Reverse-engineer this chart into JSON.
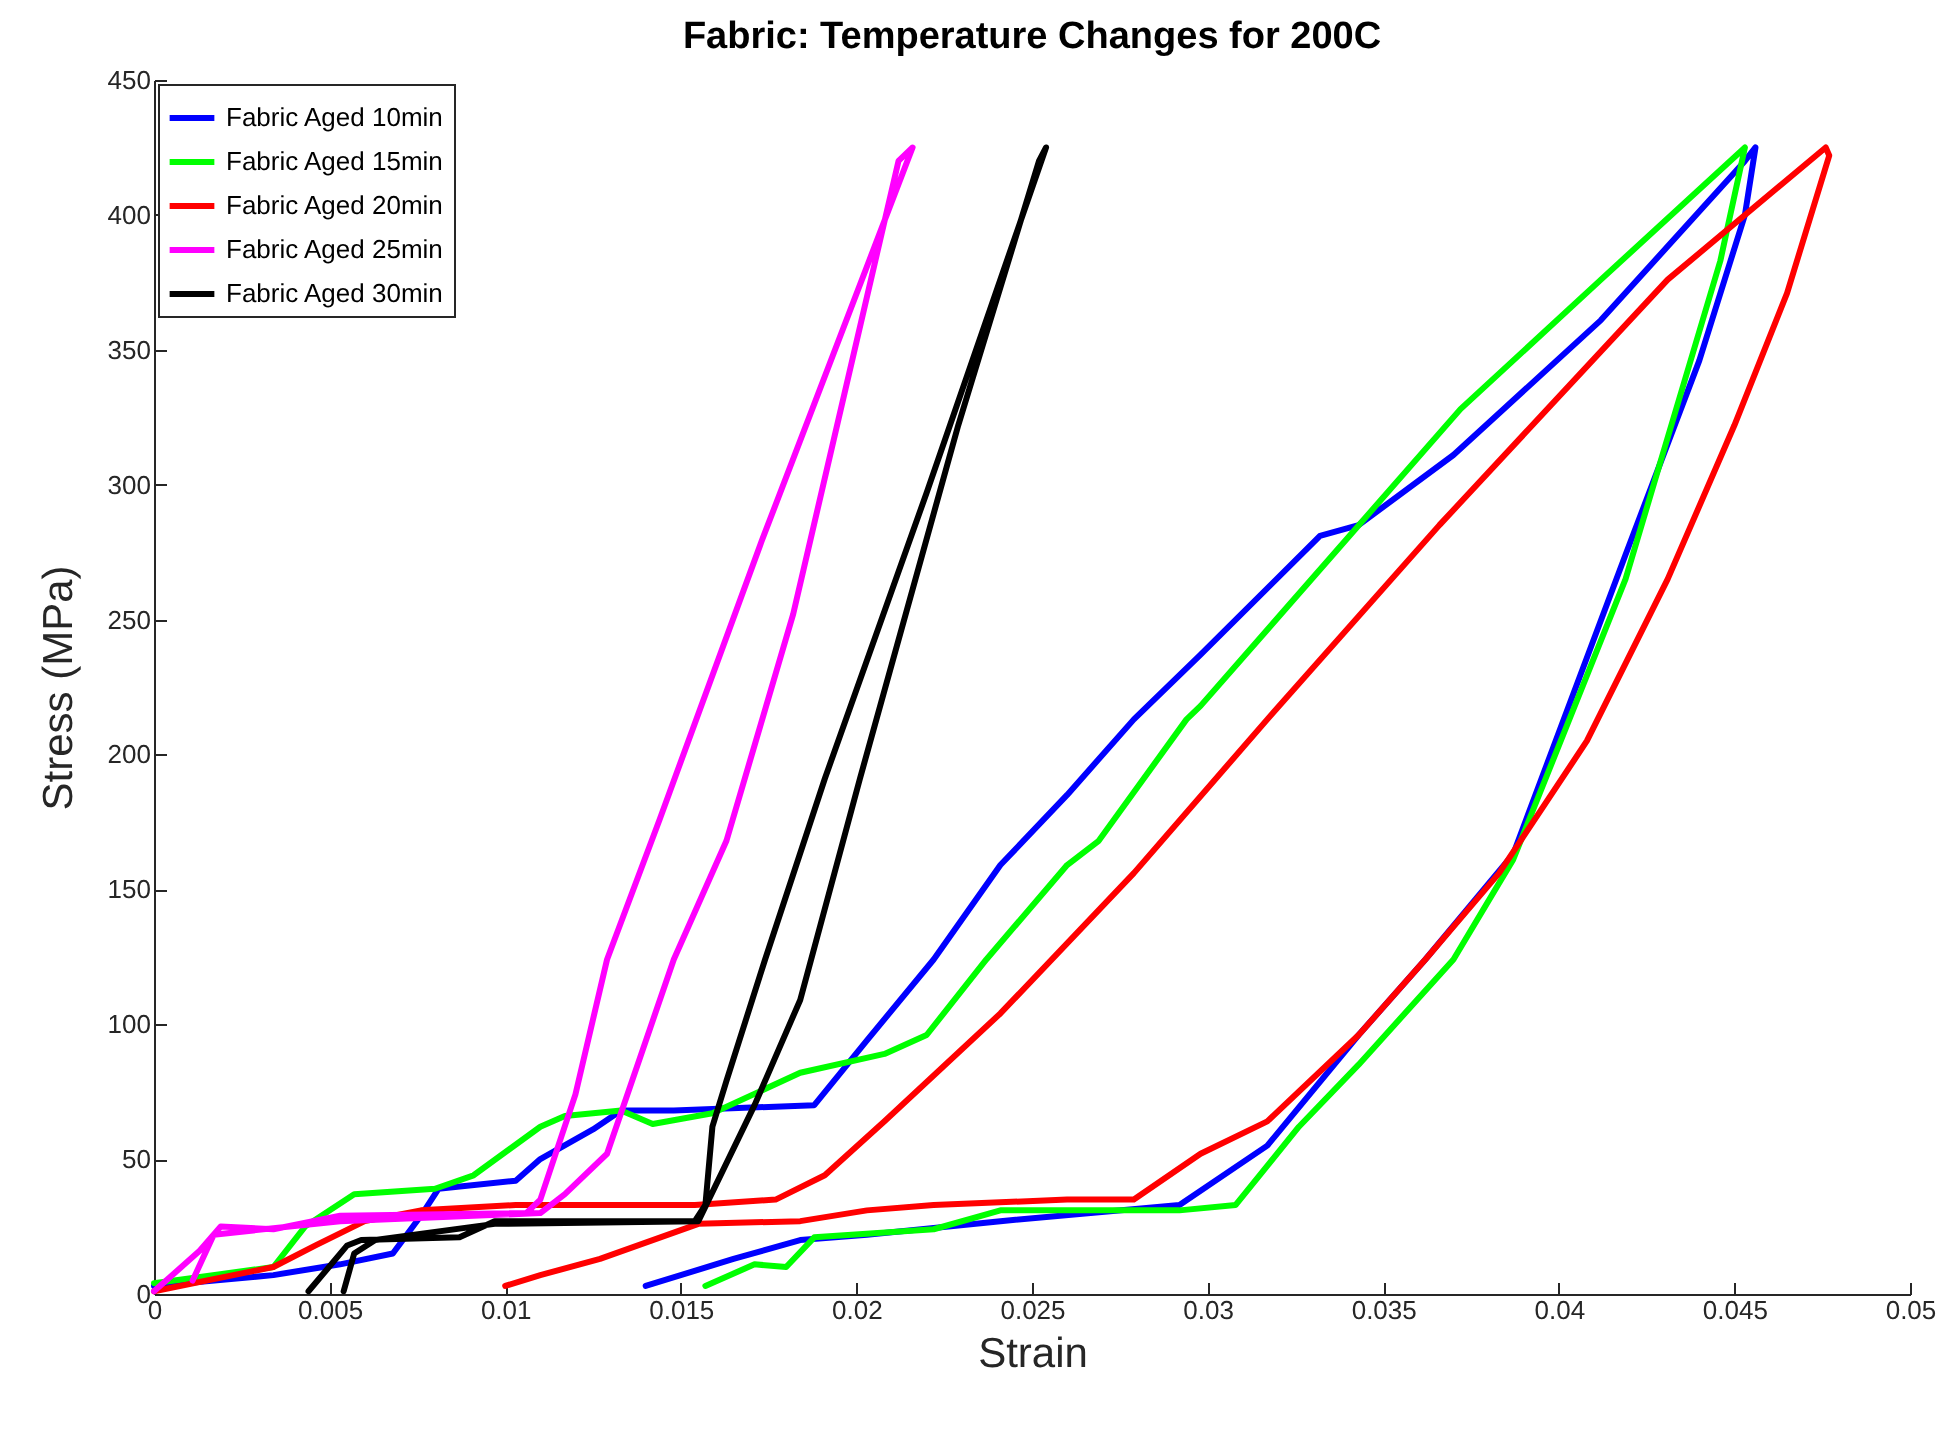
{
  "chart_data": {
    "type": "line",
    "title": "Fabric: Temperature Changes for 200C",
    "xlabel": "Strain",
    "ylabel": "Stress (MPa)",
    "xlim": [
      0,
      0.05
    ],
    "xticks": [
      0,
      0.005,
      0.01,
      0.015,
      0.02,
      0.025,
      0.03,
      0.035,
      0.04,
      0.045,
      0.05
    ],
    "ylim": [
      0,
      450
    ],
    "yticks": [
      0,
      50,
      100,
      150,
      200,
      250,
      300,
      350,
      400,
      450
    ],
    "grid": false,
    "legend": "top left",
    "line_style": "solid",
    "marker": "none",
    "series": [
      {
        "name": "Fabric Aged 10min",
        "color": "#0000ff",
        "x": [
          0,
          0.0034,
          0.0053,
          0.0068,
          0.0076,
          0.0081,
          0.0103,
          0.011,
          0.0125,
          0.0133,
          0.0148,
          0.0188,
          0.0203,
          0.0222,
          0.0241,
          0.026,
          0.0279,
          0.0298,
          0.0332,
          0.0343,
          0.037,
          0.0412,
          0.0453,
          0.0456,
          0.0453,
          0.044,
          0.0419,
          0.0387,
          0.0362,
          0.0343,
          0.0317,
          0.0292,
          0.0241,
          0.0203,
          0.0184,
          0.0165,
          0.014
        ],
        "values": [
          3,
          7,
          11,
          15,
          29,
          39,
          42,
          50,
          61,
          68,
          68,
          70,
          94,
          124,
          159,
          185,
          213,
          237,
          281,
          285,
          311,
          361,
          420,
          425,
          400,
          346,
          274,
          163,
          124,
          96,
          55,
          33,
          27,
          22,
          20,
          13,
          3
        ]
      },
      {
        "name": "Fabric Aged 15min",
        "color": "#00ff00",
        "x": [
          0,
          0.0034,
          0.0043,
          0.0057,
          0.008,
          0.0091,
          0.011,
          0.0117,
          0.0133,
          0.0142,
          0.0159,
          0.0184,
          0.0208,
          0.022,
          0.0237,
          0.026,
          0.0269,
          0.0294,
          0.0298,
          0.0372,
          0.0412,
          0.0453,
          0.0446,
          0.0419,
          0.0387,
          0.037,
          0.0343,
          0.0326,
          0.0308,
          0.0292,
          0.0241,
          0.0222,
          0.0188,
          0.018,
          0.0171,
          0.0157
        ],
        "values": [
          4,
          10,
          25,
          37,
          39,
          44,
          62,
          66,
          68,
          63,
          67,
          82,
          89,
          96,
          124,
          159,
          168,
          213,
          218,
          328,
          376,
          425,
          383,
          265,
          161,
          124,
          85,
          62,
          33,
          31,
          31,
          24,
          21,
          10,
          11,
          3
        ]
      },
      {
        "name": "Fabric Aged 20min",
        "color": "#ff0000",
        "x": [
          0,
          0.0034,
          0.0046,
          0.006,
          0.0076,
          0.0103,
          0.0129,
          0.0154,
          0.0177,
          0.0191,
          0.0208,
          0.0241,
          0.0279,
          0.0317,
          0.0366,
          0.0431,
          0.0476,
          0.0477,
          0.0465,
          0.045,
          0.0431,
          0.0408,
          0.0383,
          0.0362,
          0.0343,
          0.0317,
          0.0298,
          0.0279,
          0.026,
          0.0222,
          0.0203,
          0.0184,
          0.0155,
          0.0127,
          0.011,
          0.01
        ],
        "values": [
          1,
          10,
          18,
          27,
          31,
          33,
          33,
          33,
          35,
          44,
          64,
          104,
          156,
          213,
          285,
          376,
          425,
          422,
          371,
          322,
          265,
          205,
          156,
          124,
          96,
          64,
          52,
          35,
          35,
          33,
          31,
          27,
          26,
          13,
          7,
          3
        ]
      },
      {
        "name": "Fabric Aged 25min",
        "color": "#ff00ff",
        "x": [
          0,
          0.0013,
          0.0019,
          0.0034,
          0.0053,
          0.0106,
          0.011,
          0.012,
          0.0129,
          0.0144,
          0.0173,
          0.0216,
          0.0212,
          0.0182,
          0.0163,
          0.0148,
          0.0129,
          0.0117,
          0.011,
          0.0053,
          0.0017,
          0.0011
        ],
        "values": [
          1,
          16,
          25,
          24,
          29,
          30,
          35,
          74,
          124,
          176,
          279,
          425,
          420,
          252,
          168,
          124,
          52,
          37,
          30,
          27,
          22,
          5
        ]
      },
      {
        "name": "Fabric Aged 30min",
        "color": "#000000",
        "x": [
          0.0044,
          0.0055,
          0.0059,
          0.0087,
          0.0097,
          0.0154,
          0.0157,
          0.0159,
          0.0163,
          0.0174,
          0.0191,
          0.022,
          0.0254,
          0.0252,
          0.0229,
          0.0201,
          0.0184,
          0.0171,
          0.0155,
          0.0097,
          0.0063,
          0.0057,
          0.0054
        ],
        "values": [
          1,
          18,
          20,
          21,
          27,
          27,
          33,
          62,
          79,
          124,
          191,
          297,
          425,
          420,
          322,
          191,
          109,
          70,
          27,
          26,
          20,
          15,
          1
        ]
      }
    ]
  }
}
